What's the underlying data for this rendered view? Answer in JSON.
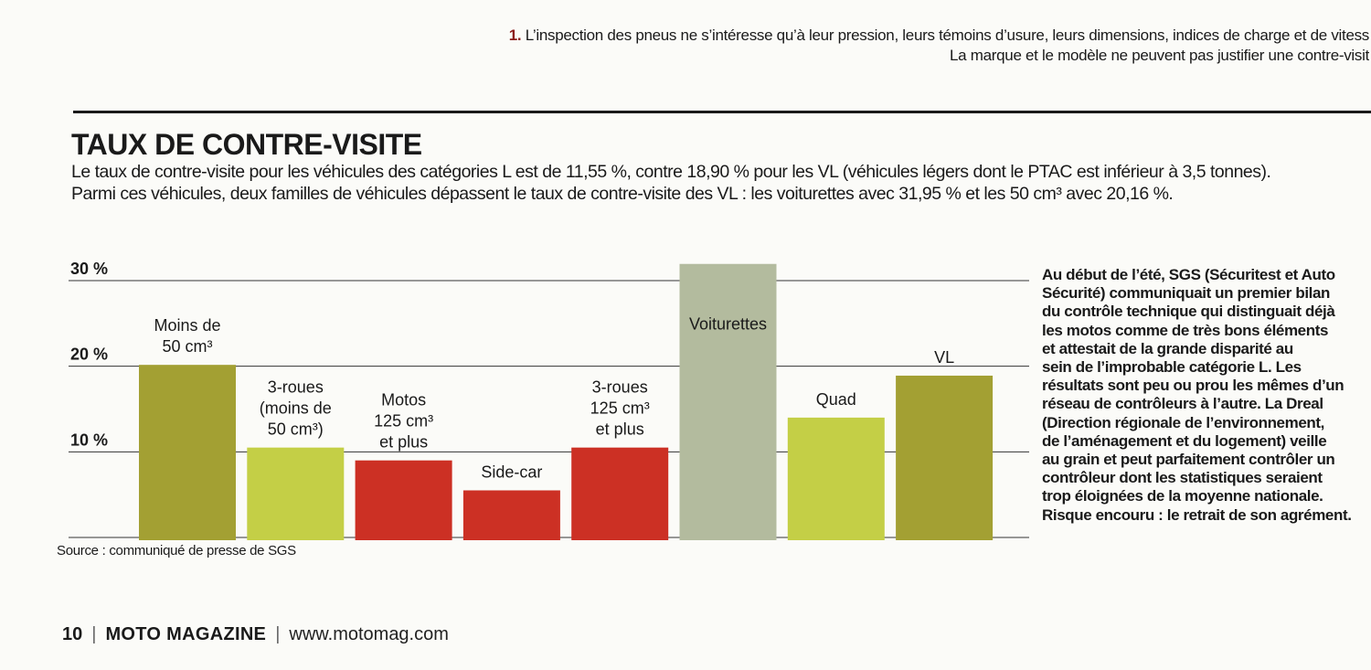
{
  "footnote": {
    "number": "1.",
    "line1": "L’inspection des pneus ne s’intéresse qu’à leur pression, leurs témoins d’usure, leurs dimensions, indices de charge et de vitess",
    "line2": "La marque et le modèle ne peuvent pas justifier une contre-visit"
  },
  "article": {
    "title": "TAUX DE CONTRE-VISITE",
    "intro_line1": "Le taux de contre-visite pour les véhicules des catégories L est de 11,55 %, contre 18,90 % pour les VL (véhicules légers dont le PTAC est inférieur à 3,5 tonnes).",
    "intro_line2": "Parmi ces véhicules, deux familles de véhicules dépassent le taux de contre-visite des VL : les voiturettes avec 31,95 % et les 50 cm³ avec 20,16 %."
  },
  "sidebar_lines": [
    "Au début de l’été, SGS (Sécuritest et Auto",
    "Sécurité) communiquait un premier bilan",
    "du contrôle technique qui distinguait déjà",
    "les motos comme de très bons éléments",
    "et attestait de la grande disparité au",
    "sein de l’improbable catégorie L. Les",
    "résultats sont peu ou prou les mêmes d’un",
    "réseau de contrôleurs à l’autre. La Dreal",
    "(Direction régionale de l’environnement,",
    "de l’aménagement et du logement) veille",
    "au grain et peut parfaitement contrôler un",
    "contrôleur dont les statistiques seraient",
    "trop éloignées de la moyenne nationale.",
    "Risque encouru : le retrait de son agrément."
  ],
  "source": "Source : communiqué de presse de SGS",
  "footer": {
    "page": "10",
    "magazine": "MOTO MAGAZINE",
    "url": "www.motomag.com"
  },
  "chart_data": {
    "type": "bar",
    "ylim": [
      0,
      30
    ],
    "yticks": [
      {
        "value": 10,
        "label": "10 %"
      },
      {
        "value": 20,
        "label": "20 %"
      },
      {
        "value": 30,
        "label": "30 %"
      }
    ],
    "grid": true,
    "categories": [
      [
        "Moins de",
        "50 cm³"
      ],
      [
        "3-roues",
        "(moins de",
        "50 cm³)"
      ],
      [
        "Motos",
        "125 cm³",
        "et plus"
      ],
      [
        "Side-car"
      ],
      [
        "3-roues",
        "125 cm³",
        "et plus"
      ],
      [
        "Voiturettes"
      ],
      [
        "Quad"
      ],
      [
        "VL"
      ]
    ],
    "values": [
      20.16,
      10.5,
      9,
      5.5,
      10.5,
      31.95,
      14,
      18.9
    ],
    "colors": [
      "#a3a033",
      "#c4cf46",
      "#cc3024",
      "#cc3024",
      "#cc3024",
      "#b3bb9e",
      "#c4cf46",
      "#a3a033"
    ]
  }
}
